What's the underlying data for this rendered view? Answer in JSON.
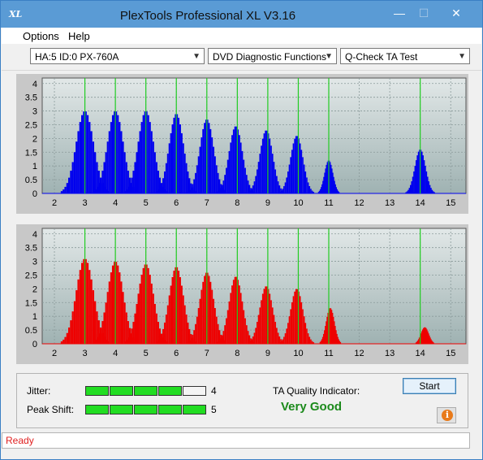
{
  "window": {
    "title": "PlexTools Professional XL V3.16",
    "icon_text": "XL",
    "min_glyph": "—",
    "max_glyph": "☐",
    "close_glyph": "✕"
  },
  "menu": {
    "items": [
      {
        "label": "Options"
      },
      {
        "label": "Help"
      }
    ]
  },
  "toolbar": {
    "drive": "HA:5 ID:0  PX-760A",
    "function": "DVD Diagnostic Functions",
    "test": "Q-Check TA Test"
  },
  "colors": {
    "top_bars": "#0000ee",
    "bottom_bars": "#ee0000",
    "peak_lines": "#22cc22",
    "plot_bg_top": "#e2e8e8",
    "plot_bg_bottom": "#9fb2b2"
  },
  "chart_data": [
    {
      "type": "bar",
      "series_color": "blue",
      "x_ticks": [
        "2",
        "3",
        "4",
        "5",
        "6",
        "7",
        "8",
        "9",
        "10",
        "11",
        "12",
        "13",
        "14",
        "15"
      ],
      "y_ticks": [
        "0",
        "0.5",
        "1",
        "1.5",
        "2",
        "2.5",
        "3",
        "3.5",
        "4"
      ],
      "xlim": [
        1.6,
        15.5
      ],
      "ylim": [
        0,
        4.2
      ],
      "peak_markers": [
        3,
        4,
        5,
        6,
        7,
        8,
        9,
        10,
        11,
        14
      ],
      "peaks": [
        {
          "center": 3.0,
          "height": 3.0,
          "width": 0.36
        },
        {
          "center": 4.0,
          "height": 3.0,
          "width": 0.33
        },
        {
          "center": 5.0,
          "height": 3.0,
          "width": 0.32
        },
        {
          "center": 6.0,
          "height": 2.9,
          "width": 0.3
        },
        {
          "center": 7.0,
          "height": 2.7,
          "width": 0.29
        },
        {
          "center": 7.95,
          "height": 2.45,
          "width": 0.28
        },
        {
          "center": 8.95,
          "height": 2.3,
          "width": 0.27
        },
        {
          "center": 9.95,
          "height": 2.1,
          "width": 0.26
        },
        {
          "center": 11.0,
          "height": 1.2,
          "width": 0.17
        },
        {
          "center": 14.0,
          "height": 1.6,
          "width": 0.22
        }
      ]
    },
    {
      "type": "bar",
      "series_color": "red",
      "x_ticks": [
        "2",
        "3",
        "4",
        "5",
        "6",
        "7",
        "8",
        "9",
        "10",
        "11",
        "12",
        "13",
        "14",
        "15"
      ],
      "y_ticks": [
        "0",
        "0.5",
        "1",
        "1.5",
        "2",
        "2.5",
        "3",
        "3.5",
        "4"
      ],
      "xlim": [
        1.6,
        15.5
      ],
      "ylim": [
        0,
        4.2
      ],
      "peak_markers": [
        3,
        4,
        5,
        6,
        7,
        8,
        9,
        10,
        11,
        14
      ],
      "peaks": [
        {
          "center": 3.0,
          "height": 3.1,
          "width": 0.36
        },
        {
          "center": 4.0,
          "height": 3.0,
          "width": 0.33
        },
        {
          "center": 5.0,
          "height": 2.9,
          "width": 0.32
        },
        {
          "center": 6.0,
          "height": 2.8,
          "width": 0.3
        },
        {
          "center": 7.0,
          "height": 2.6,
          "width": 0.29
        },
        {
          "center": 7.95,
          "height": 2.45,
          "width": 0.28
        },
        {
          "center": 8.95,
          "height": 2.1,
          "width": 0.27
        },
        {
          "center": 9.95,
          "height": 2.0,
          "width": 0.26
        },
        {
          "center": 11.05,
          "height": 1.3,
          "width": 0.17
        },
        {
          "center": 14.15,
          "height": 0.6,
          "width": 0.16
        }
      ]
    }
  ],
  "results": {
    "jitter_label": "Jitter:",
    "jitter_value": "4",
    "jitter_level": 4,
    "peak_label": "Peak Shift:",
    "peak_value": "5",
    "peak_level": 5,
    "meter_segments": 5,
    "ta_label": "TA Quality Indicator:",
    "ta_value": "Very Good",
    "start_label": "Start",
    "info_glyph": "i"
  },
  "status": {
    "text": "Ready"
  }
}
